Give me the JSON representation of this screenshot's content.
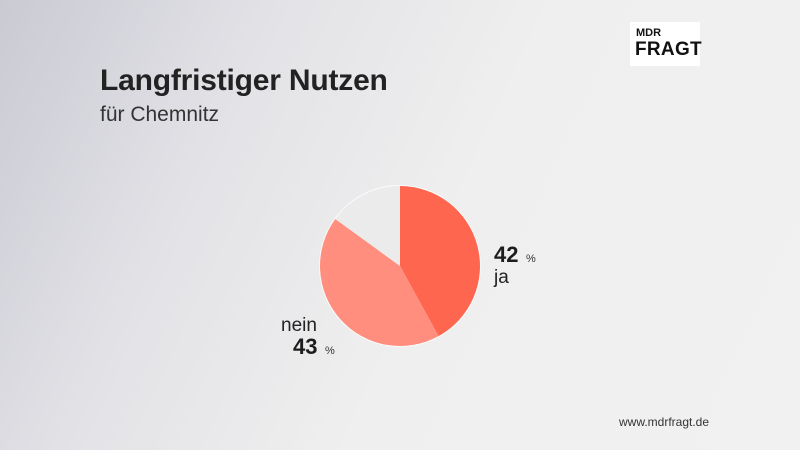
{
  "header": {
    "title": "Langfristiger Nutzen",
    "subtitle": "für Chemnitz"
  },
  "logo": {
    "top": "MDR",
    "main": "FRAGT"
  },
  "footer": {
    "url": "www.mdrfragt.de"
  },
  "chart_data": {
    "type": "pie",
    "title": "Langfristiger Nutzen",
    "subtitle": "für Chemnitz",
    "slices": [
      {
        "label": "ja",
        "value": 42,
        "unit": "%",
        "color": "#ff6650"
      },
      {
        "label": "nein",
        "value": 43,
        "unit": "%",
        "color": "#ff8e7e"
      },
      {
        "label": "",
        "value": 15,
        "unit": "",
        "color": "#ebebeb"
      }
    ]
  }
}
